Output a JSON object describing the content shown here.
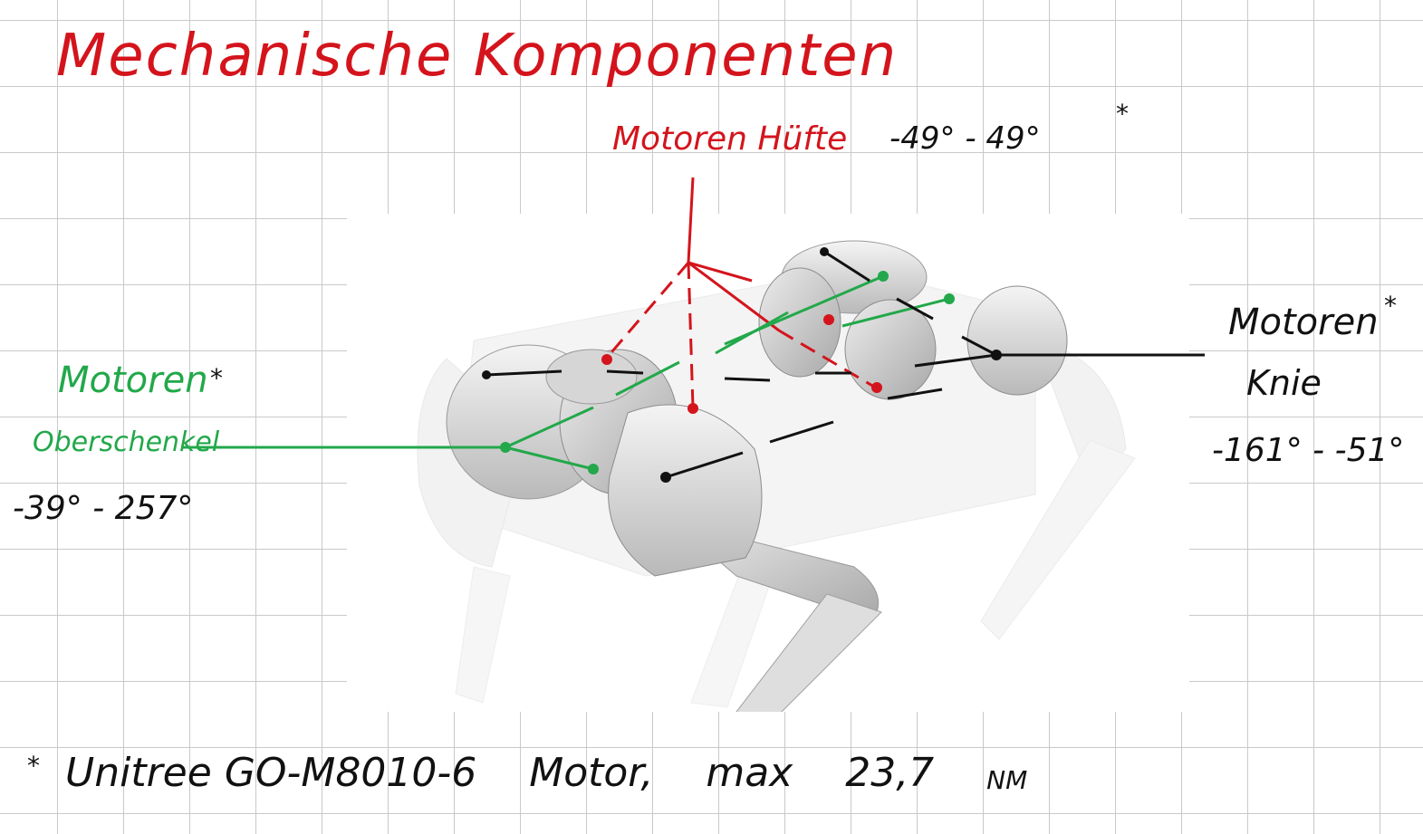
{
  "title": "Mechanische Komponenten",
  "hip": {
    "label": "Motoren Hüfte",
    "range": "-49° - 49°",
    "star": "*"
  },
  "thigh": {
    "label": "Motoren",
    "star": "*",
    "sublabel": "Oberschenkel",
    "range": "-39° - 257°"
  },
  "knee": {
    "label": "Motoren",
    "star": "*",
    "sublabel": "Knie",
    "range": "-161° - -51°"
  },
  "footnote": {
    "star": "*",
    "parts": [
      "Unitree",
      "GO-M8010-6",
      "Motor,",
      "max",
      "23,7",
      "NM"
    ]
  },
  "colors": {
    "hip": "#d4141c",
    "thigh": "#22a84a",
    "knee": "#111111"
  },
  "image": {
    "subject": "quadruped-robot-rendering"
  }
}
